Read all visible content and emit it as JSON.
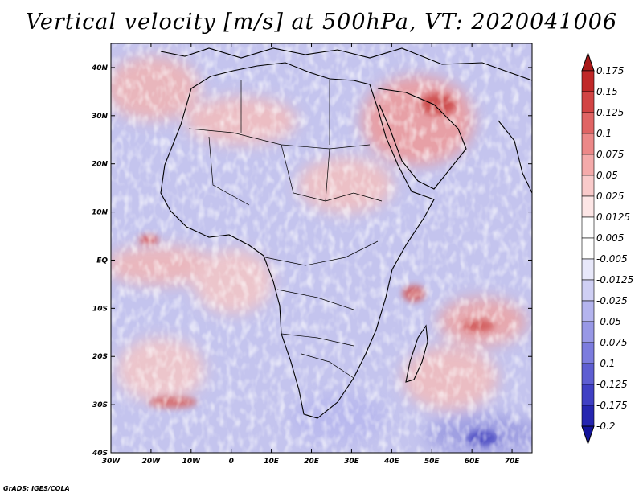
{
  "title": "Vertical velocity [m/s] at 500hPa, VT: 2020041006",
  "credit": "GrADS: IGES/COLA",
  "map": {
    "lon_range": [
      -30,
      75
    ],
    "lat_range": [
      -40,
      45
    ],
    "lon_ticks": [
      {
        "value": -30,
        "label": "30W"
      },
      {
        "value": -20,
        "label": "20W"
      },
      {
        "value": -10,
        "label": "10W"
      },
      {
        "value": 0,
        "label": "0"
      },
      {
        "value": 10,
        "label": "10E"
      },
      {
        "value": 20,
        "label": "20E"
      },
      {
        "value": 30,
        "label": "30E"
      },
      {
        "value": 40,
        "label": "40E"
      },
      {
        "value": 50,
        "label": "50E"
      },
      {
        "value": 60,
        "label": "60E"
      },
      {
        "value": 70,
        "label": "70E"
      }
    ],
    "lat_ticks": [
      {
        "value": 40,
        "label": "40N"
      },
      {
        "value": 30,
        "label": "30N"
      },
      {
        "value": 20,
        "label": "20N"
      },
      {
        "value": 10,
        "label": "10N"
      },
      {
        "value": 0,
        "label": "EQ"
      },
      {
        "value": -10,
        "label": "10S"
      },
      {
        "value": -20,
        "label": "20S"
      },
      {
        "value": -30,
        "label": "30S"
      },
      {
        "value": -40,
        "label": "40S"
      }
    ]
  },
  "colorbar": {
    "levels": [
      {
        "label": "0.175",
        "color": "#a81818"
      },
      {
        "label": "0.15",
        "color": "#c02828"
      },
      {
        "label": "0.125",
        "color": "#d24444"
      },
      {
        "label": "0.1",
        "color": "#e06464"
      },
      {
        "label": "0.075",
        "color": "#ec8888"
      },
      {
        "label": "0.05",
        "color": "#f4aaaa"
      },
      {
        "label": "0.025",
        "color": "#f9caca"
      },
      {
        "label": "0.0125",
        "color": "#fde6e6"
      },
      {
        "label": "0.005",
        "color": "#ffffff"
      },
      {
        "label": "-0.005",
        "color": "#e8e8fa"
      },
      {
        "label": "-0.0125",
        "color": "#cfcff4"
      },
      {
        "label": "-0.025",
        "color": "#b4b4ee"
      },
      {
        "label": "-0.05",
        "color": "#9898e6"
      },
      {
        "label": "-0.075",
        "color": "#7c7cde"
      },
      {
        "label": "-0.1",
        "color": "#5e5ed2"
      },
      {
        "label": "-0.125",
        "color": "#4040c4"
      },
      {
        "label": "-0.175",
        "color": "#2626b0"
      },
      {
        "label": "-0.2",
        "color": "#14149a"
      }
    ],
    "top_color": "#a81818",
    "bottom_color": "#14149a",
    "mid_color": "#ffffff"
  }
}
